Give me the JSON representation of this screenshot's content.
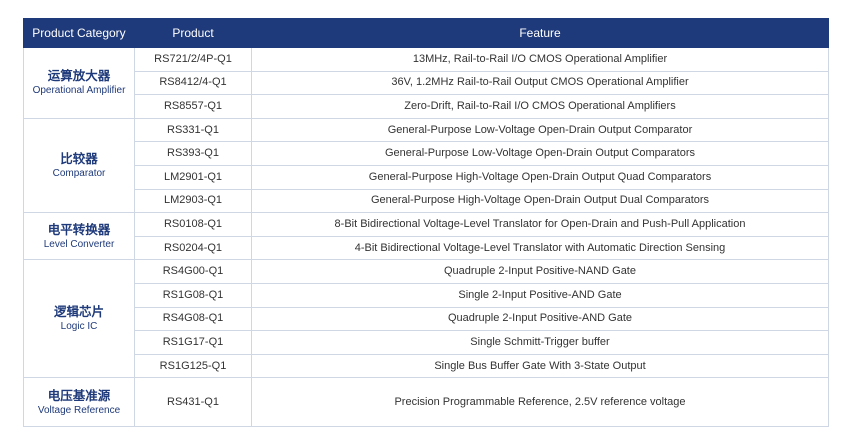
{
  "headers": {
    "category": "Product Category",
    "product": "Product",
    "feature": "Feature"
  },
  "groups": [
    {
      "cn": "运算放大器",
      "en": "Operational Amplifier",
      "rows": [
        {
          "product": "RS721/2/4P-Q1",
          "feature": "13MHz, Rail-to-Rail I/O CMOS Operational Amplifier"
        },
        {
          "product": "RS8412/4-Q1",
          "feature": "36V, 1.2MHz Rail-to-Rail Output CMOS Operational Amplifier"
        },
        {
          "product": "RS8557-Q1",
          "feature": "Zero-Drift, Rail-to-Rail I/O CMOS Operational Amplifiers"
        }
      ]
    },
    {
      "cn": "比较器",
      "en": "Comparator",
      "rows": [
        {
          "product": "RS331-Q1",
          "feature": "General-Purpose Low-Voltage Open-Drain  Output Comparator"
        },
        {
          "product": "RS393-Q1",
          "feature": "General-Purpose Low-Voltage Open-Drain  Output Comparators"
        },
        {
          "product": "LM2901-Q1",
          "feature": "General-Purpose High-Voltage Open-Drain Output Quad Comparators"
        },
        {
          "product": "LM2903-Q1",
          "feature": "General-Purpose High-Voltage Open-Drain Output Dual Comparators"
        }
      ]
    },
    {
      "cn": "电平转换器",
      "en": "Level Converter",
      "rows": [
        {
          "product": "RS0108-Q1",
          "feature": "8-Bit Bidirectional Voltage-Level Translator for Open-Drain and Push-Pull Application"
        },
        {
          "product": "RS0204-Q1",
          "feature": "4-Bit Bidirectional Voltage-Level Translator with Automatic Direction Sensing"
        }
      ]
    },
    {
      "cn": "逻辑芯片",
      "en": "Logic IC",
      "rows": [
        {
          "product": "RS4G00-Q1",
          "feature": "Quadruple 2-Input Positive-NAND Gate"
        },
        {
          "product": "RS1G08-Q1",
          "feature": "Single 2-Input Positive-AND Gate"
        },
        {
          "product": "RS4G08-Q1",
          "feature": "Quadruple 2-Input Positive-AND Gate"
        },
        {
          "product": "RS1G17-Q1",
          "feature": "Single Schmitt-Trigger buffer"
        },
        {
          "product": "RS1G125-Q1",
          "feature": "Single Bus Buffer Gate With 3-State Output"
        }
      ]
    },
    {
      "cn": "电压基准源",
      "en": "Voltage Reference",
      "rows": [
        {
          "product": "RS431-Q1",
          "feature": "Precision Programmable Reference, 2.5V reference voltage"
        }
      ]
    }
  ]
}
